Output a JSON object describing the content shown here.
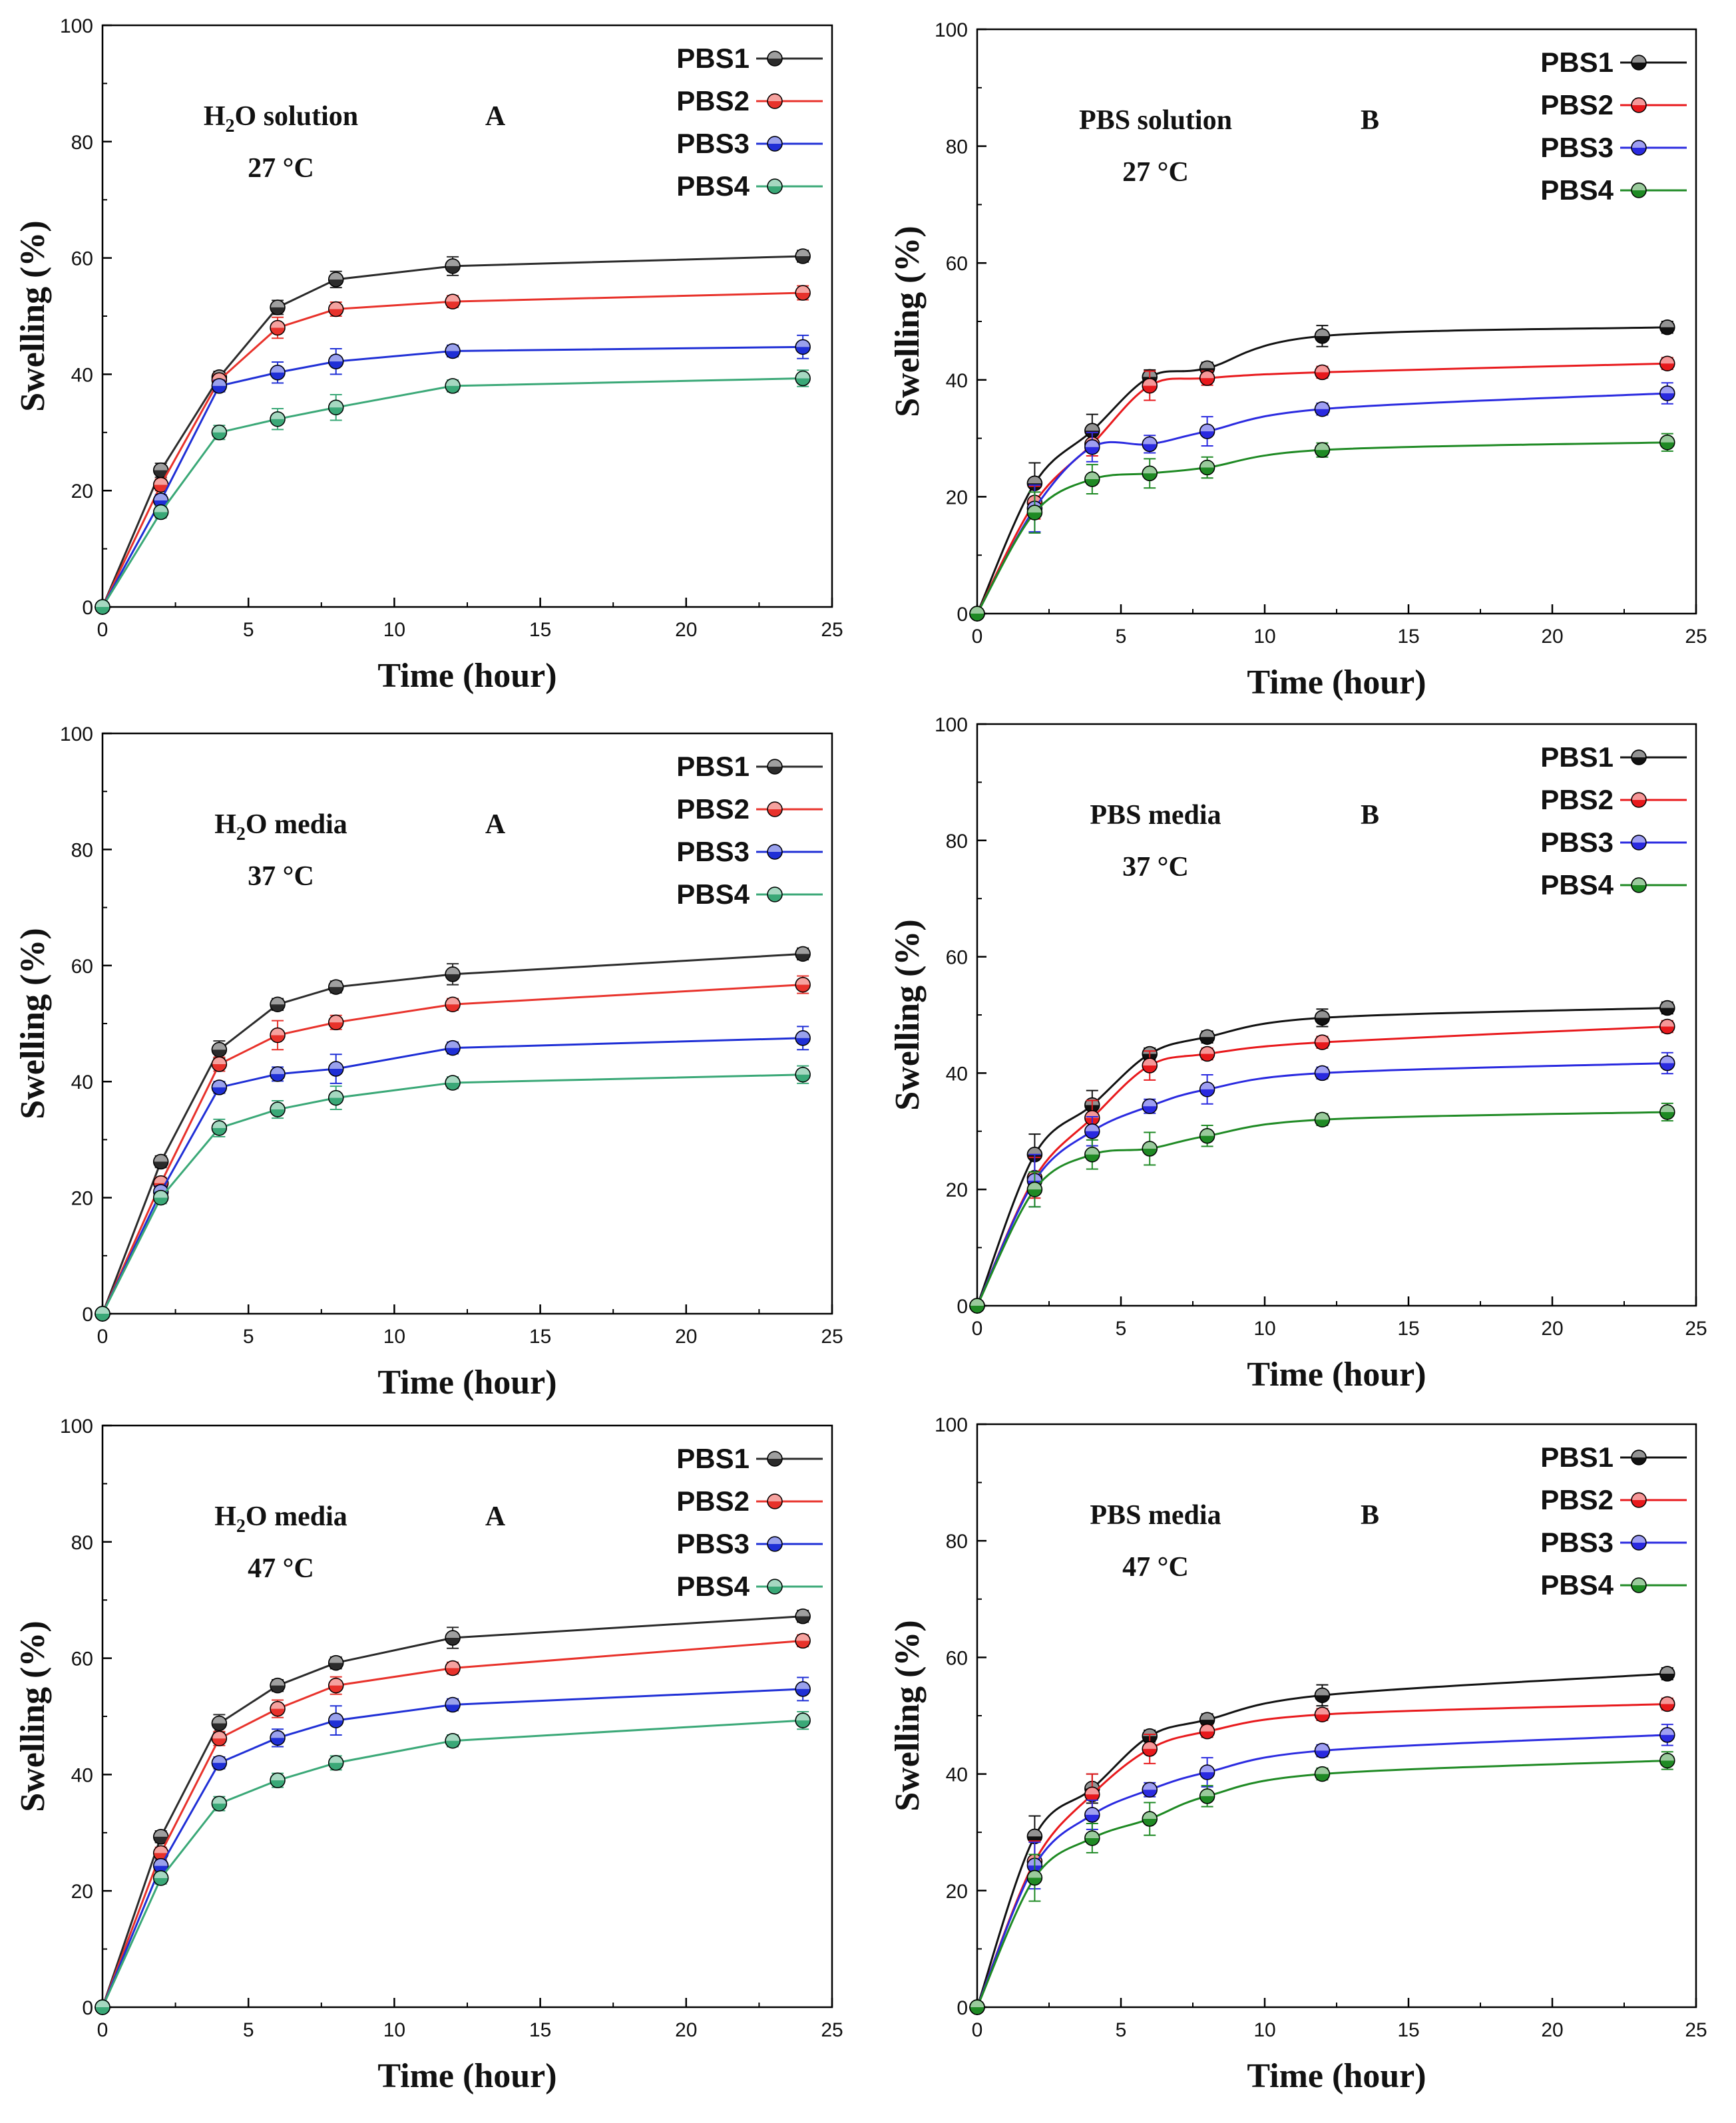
{
  "figure": {
    "series_names": [
      "PBS1",
      "PBS2",
      "PBS3",
      "PBS4"
    ],
    "x_axis_title": "Time (hour)",
    "y_axis_title": "Swelling (%)"
  },
  "chart_data": [
    {
      "type": "line",
      "panel": "top-left",
      "label_lines": [
        "H",
        "2",
        "O solution"
      ],
      "temperature": "27 °C",
      "panel_letter": "A",
      "xlabel": "Time (hour)",
      "ylabel": "Swelling (%)",
      "xlim": [
        0,
        25
      ],
      "ylim": [
        0,
        100
      ],
      "xticks": [
        0,
        5,
        10,
        15,
        20,
        25
      ],
      "yticks": [
        0,
        20,
        40,
        60,
        80,
        100
      ],
      "legend_position": "top-right",
      "smooth": false,
      "x": [
        0,
        2,
        4,
        6,
        8,
        12,
        24
      ],
      "series": [
        {
          "name": "PBS1",
          "color": "#2b2b2b",
          "values": [
            0,
            23.5,
            39.5,
            51.5,
            56.3,
            58.6,
            60.3
          ],
          "errors": [
            0,
            1.2,
            1.0,
            1.2,
            1.4,
            1.6,
            1.0
          ]
        },
        {
          "name": "PBS2",
          "color": "#e8322b",
          "values": [
            0,
            21.0,
            39.0,
            48.0,
            51.2,
            52.5,
            54.0
          ],
          "errors": [
            0,
            1.0,
            1.0,
            1.8,
            1.2,
            1.0,
            1.2
          ]
        },
        {
          "name": "PBS3",
          "color": "#1f2fd6",
          "values": [
            0,
            18.3,
            38.0,
            40.3,
            42.2,
            44.0,
            44.7
          ],
          "errors": [
            0,
            1.0,
            1.0,
            1.8,
            2.2,
            1.0,
            2.0
          ]
        },
        {
          "name": "PBS4",
          "color": "#3aa877",
          "values": [
            0,
            16.3,
            30.0,
            32.3,
            34.3,
            38.0,
            39.3
          ],
          "errors": [
            0,
            1.0,
            1.2,
            1.8,
            2.2,
            1.0,
            1.4
          ]
        }
      ]
    },
    {
      "type": "line",
      "panel": "top-right",
      "label_lines": [
        "PBS solution"
      ],
      "temperature": "27 °C",
      "panel_letter": "B",
      "xlabel": "Time (hour)",
      "ylabel": "Swelling (%)",
      "xlim": [
        0,
        25
      ],
      "ylim": [
        0,
        100
      ],
      "xticks": [
        0,
        5,
        10,
        15,
        20,
        25
      ],
      "yticks": [
        0,
        20,
        40,
        60,
        80,
        100
      ],
      "legend_position": "top-right",
      "smooth": true,
      "x": [
        0,
        2,
        4,
        6,
        8,
        12,
        24
      ],
      "series": [
        {
          "name": "PBS1",
          "color": "#111111",
          "values": [
            0,
            22.3,
            31.3,
            40.5,
            42.0,
            47.5,
            49.0
          ],
          "errors": [
            0,
            3.5,
            2.8,
            1.2,
            1.0,
            1.8,
            1.0
          ]
        },
        {
          "name": "PBS2",
          "color": "#e8191c",
          "values": [
            0,
            19.0,
            29.0,
            39.0,
            40.3,
            41.3,
            42.8
          ],
          "errors": [
            0,
            2.8,
            2.0,
            2.5,
            1.2,
            1.0,
            1.0
          ]
        },
        {
          "name": "PBS3",
          "color": "#2a2ae0",
          "values": [
            0,
            18.0,
            28.5,
            29.0,
            31.2,
            35.0,
            37.7
          ],
          "errors": [
            0,
            4.0,
            2.5,
            1.5,
            2.5,
            1.0,
            1.8
          ]
        },
        {
          "name": "PBS4",
          "color": "#1f8a24",
          "values": [
            0,
            17.3,
            23.0,
            24.0,
            25.0,
            28.0,
            29.3
          ],
          "errors": [
            0,
            3.5,
            2.5,
            2.5,
            1.8,
            1.2,
            1.5
          ]
        }
      ]
    },
    {
      "type": "line",
      "panel": "middle-left",
      "label_lines": [
        "H",
        "2",
        "O media"
      ],
      "temperature": "37 °C",
      "panel_letter": "A",
      "xlabel": "Time (hour)",
      "ylabel": "Swelling (%)",
      "xlim": [
        0,
        25
      ],
      "ylim": [
        0,
        100
      ],
      "xticks": [
        0,
        5,
        10,
        15,
        20,
        25
      ],
      "yticks": [
        0,
        20,
        40,
        60,
        80,
        100
      ],
      "legend_position": "top-right",
      "smooth": false,
      "x": [
        0,
        2,
        4,
        6,
        8,
        12,
        24
      ],
      "series": [
        {
          "name": "PBS1",
          "color": "#2b2b2b",
          "values": [
            0,
            26.2,
            45.5,
            53.3,
            56.3,
            58.5,
            62.0
          ],
          "errors": [
            0,
            1.0,
            1.5,
            1.0,
            1.0,
            1.8,
            1.0
          ]
        },
        {
          "name": "PBS2",
          "color": "#e8322b",
          "values": [
            0,
            22.5,
            43.0,
            48.0,
            50.2,
            53.3,
            56.7
          ],
          "errors": [
            0,
            1.0,
            1.2,
            2.5,
            1.2,
            1.0,
            1.5
          ]
        },
        {
          "name": "PBS3",
          "color": "#1f2fd6",
          "values": [
            0,
            21.0,
            39.0,
            41.3,
            42.2,
            45.8,
            47.5
          ],
          "errors": [
            0,
            1.0,
            1.0,
            1.2,
            2.5,
            1.0,
            2.0
          ]
        },
        {
          "name": "PBS4",
          "color": "#3aa877",
          "values": [
            0,
            20.0,
            32.0,
            35.2,
            37.2,
            39.8,
            41.2
          ],
          "errors": [
            0,
            1.0,
            1.5,
            1.5,
            2.0,
            1.0,
            1.5
          ]
        }
      ]
    },
    {
      "type": "line",
      "panel": "middle-right",
      "label_lines": [
        "PBS media"
      ],
      "temperature": "37 °C",
      "panel_letter": "B",
      "xlabel": "Time (hour)",
      "ylabel": "Swelling (%)",
      "xlim": [
        0,
        25
      ],
      "ylim": [
        0,
        100
      ],
      "xticks": [
        0,
        5,
        10,
        15,
        20,
        25
      ],
      "yticks": [
        0,
        20,
        40,
        60,
        80,
        100
      ],
      "legend_position": "top-right",
      "smooth": true,
      "x": [
        0,
        2,
        4,
        6,
        8,
        12,
        24
      ],
      "series": [
        {
          "name": "PBS1",
          "color": "#111111",
          "values": [
            0,
            26.0,
            34.5,
            43.3,
            46.2,
            49.5,
            51.2
          ],
          "errors": [
            0,
            3.5,
            2.5,
            1.0,
            1.0,
            1.5,
            1.0
          ]
        },
        {
          "name": "PBS2",
          "color": "#e8191c",
          "values": [
            0,
            22.0,
            32.3,
            41.3,
            43.3,
            45.3,
            48.0
          ],
          "errors": [
            0,
            3.5,
            3.0,
            2.5,
            1.0,
            1.0,
            1.0
          ]
        },
        {
          "name": "PBS3",
          "color": "#2a2ae0",
          "values": [
            0,
            21.5,
            30.0,
            34.3,
            37.2,
            40.0,
            41.7
          ],
          "errors": [
            0,
            4.5,
            2.5,
            1.2,
            2.5,
            1.0,
            1.8
          ]
        },
        {
          "name": "PBS4",
          "color": "#1f8a24",
          "values": [
            0,
            20.0,
            26.0,
            27.0,
            29.2,
            32.0,
            33.3
          ],
          "errors": [
            0,
            3.0,
            2.5,
            2.8,
            1.8,
            1.0,
            1.5
          ]
        }
      ]
    },
    {
      "type": "line",
      "panel": "bottom-left",
      "label_lines": [
        "H",
        "2",
        "O media"
      ],
      "temperature": "47 °C",
      "panel_letter": "A",
      "xlabel": "Time (hour)",
      "ylabel": "Swelling (%)",
      "xlim": [
        0,
        25
      ],
      "ylim": [
        0,
        100
      ],
      "xticks": [
        0,
        5,
        10,
        15,
        20,
        25
      ],
      "yticks": [
        0,
        20,
        40,
        60,
        80,
        100
      ],
      "legend_position": "top-right",
      "smooth": false,
      "x": [
        0,
        2,
        4,
        6,
        8,
        12,
        24
      ],
      "series": [
        {
          "name": "PBS1",
          "color": "#2b2b2b",
          "values": [
            0,
            29.3,
            48.8,
            55.3,
            59.2,
            63.5,
            67.2
          ],
          "errors": [
            0,
            1.0,
            1.5,
            1.0,
            1.0,
            1.8,
            1.0
          ]
        },
        {
          "name": "PBS2",
          "color": "#e8322b",
          "values": [
            0,
            26.5,
            46.2,
            51.3,
            55.3,
            58.3,
            63.0
          ],
          "errors": [
            0,
            1.0,
            1.2,
            1.5,
            1.5,
            1.0,
            1.0
          ]
        },
        {
          "name": "PBS3",
          "color": "#1f2fd6",
          "values": [
            0,
            24.3,
            42.0,
            46.3,
            49.3,
            52.0,
            54.7
          ],
          "errors": [
            0,
            1.0,
            1.0,
            1.5,
            2.5,
            1.0,
            2.0
          ]
        },
        {
          "name": "PBS4",
          "color": "#3aa877",
          "values": [
            0,
            22.2,
            35.0,
            39.0,
            42.0,
            45.8,
            49.3
          ],
          "errors": [
            0,
            1.0,
            1.2,
            1.2,
            1.2,
            1.0,
            1.5
          ]
        }
      ]
    },
    {
      "type": "line",
      "panel": "bottom-right",
      "label_lines": [
        "PBS media"
      ],
      "temperature": "47 °C",
      "panel_letter": "B",
      "xlabel": "Time (hour)",
      "ylabel": "Swelling (%)",
      "xlim": [
        0,
        25
      ],
      "ylim": [
        0,
        100
      ],
      "xticks": [
        0,
        5,
        10,
        15,
        20,
        25
      ],
      "yticks": [
        0,
        20,
        40,
        60,
        80,
        100
      ],
      "legend_position": "top-right",
      "smooth": true,
      "x": [
        0,
        2,
        4,
        6,
        8,
        12,
        24
      ],
      "series": [
        {
          "name": "PBS1",
          "color": "#111111",
          "values": [
            0,
            29.3,
            37.5,
            46.5,
            49.3,
            53.5,
            57.2
          ],
          "errors": [
            0,
            3.5,
            2.5,
            1.0,
            1.0,
            1.8,
            1.0
          ]
        },
        {
          "name": "PBS2",
          "color": "#e8191c",
          "values": [
            0,
            25.0,
            36.5,
            44.3,
            47.3,
            50.2,
            52.0
          ],
          "errors": [
            0,
            3.5,
            3.5,
            2.5,
            1.0,
            1.0,
            1.0
          ]
        },
        {
          "name": "PBS3",
          "color": "#2a2ae0",
          "values": [
            0,
            24.3,
            33.0,
            37.3,
            40.3,
            44.0,
            46.7
          ],
          "errors": [
            0,
            4.0,
            2.5,
            1.2,
            2.5,
            1.0,
            1.8
          ]
        },
        {
          "name": "PBS4",
          "color": "#1f8a24",
          "values": [
            0,
            22.2,
            29.0,
            32.3,
            36.2,
            40.0,
            42.3
          ],
          "errors": [
            0,
            4.0,
            2.5,
            2.8,
            1.8,
            1.0,
            1.5
          ]
        }
      ]
    }
  ]
}
